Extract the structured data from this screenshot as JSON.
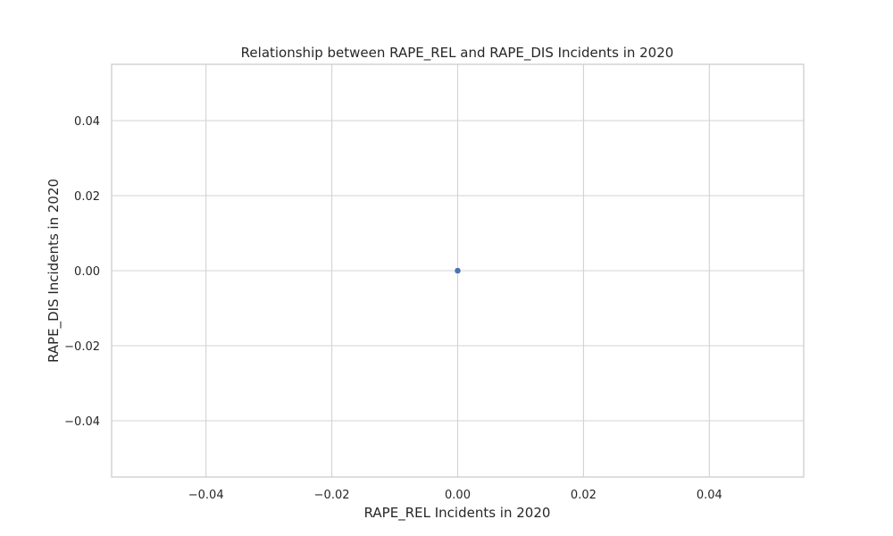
{
  "chart_data": {
    "type": "scatter",
    "title": "Relationship between RAPE_REL and RAPE_DIS Incidents in 2020",
    "xlabel": "RAPE_REL Incidents in 2020",
    "ylabel": "RAPE_DIS Incidents in 2020",
    "xlim": [
      -0.055,
      0.055
    ],
    "ylim": [
      -0.055,
      0.055
    ],
    "x_ticks": [
      -0.04,
      -0.02,
      0.0,
      0.02,
      0.04
    ],
    "x_tick_labels": [
      "−0.04",
      "−0.02",
      "0.00",
      "0.02",
      "0.04"
    ],
    "y_ticks": [
      -0.04,
      -0.02,
      0.0,
      0.02,
      0.04
    ],
    "y_tick_labels": [
      "−0.04",
      "−0.02",
      "0.00",
      "0.02",
      "0.04"
    ],
    "grid": true,
    "legend": "none",
    "series": [
      {
        "color": "#4c72b0",
        "points": [
          {
            "x": 0.0,
            "y": 0.0
          }
        ]
      }
    ]
  },
  "colors": {
    "background": "#ffffff",
    "grid": "#d3d3d3",
    "frame": "#cccccc",
    "text": "#262626",
    "point": "#4c72b0"
  }
}
